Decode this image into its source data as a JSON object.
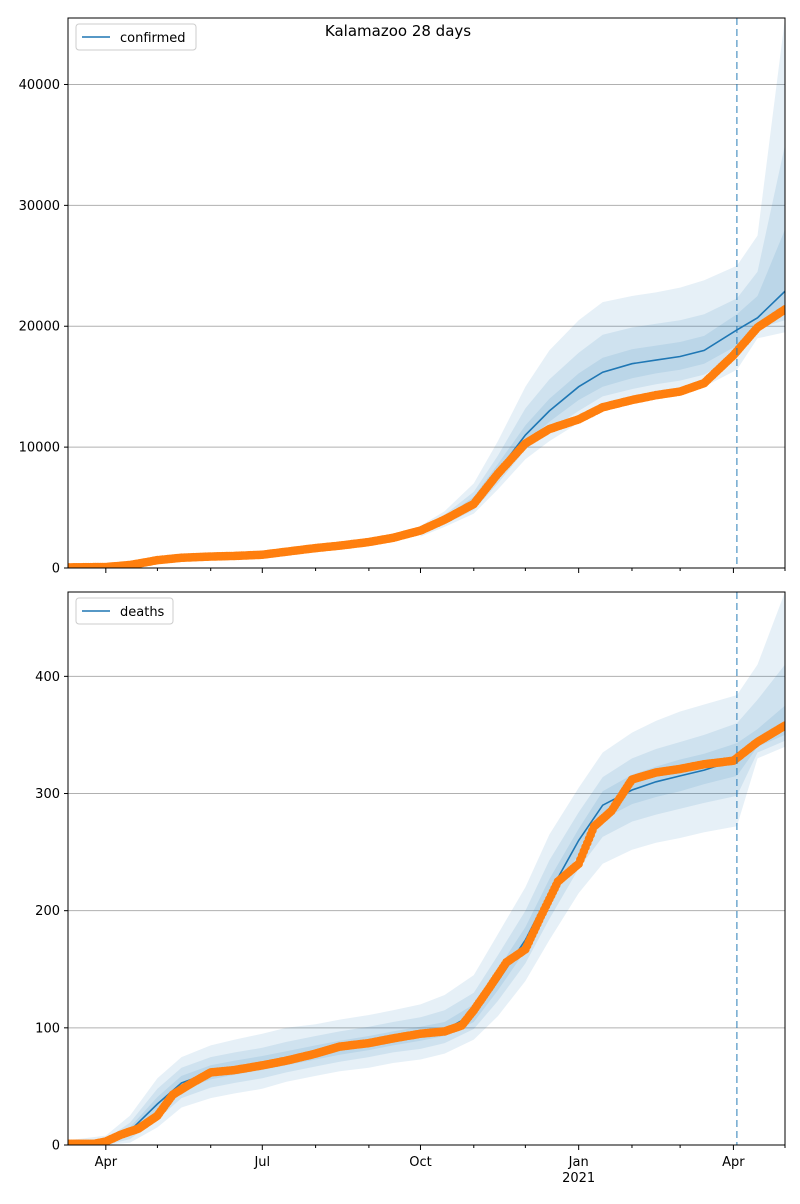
{
  "title": "Kalamazoo 28 days",
  "colors": {
    "model_line": "#1f77b4",
    "observed": "#ff7f0e",
    "band": "#1f77b4",
    "grid": "#b0b0b0",
    "vline": "#1f77b4"
  },
  "x_ticks": [
    {
      "label": "Apr",
      "sublabel": "",
      "date": "2020-04-01"
    },
    {
      "label": "Jul",
      "sublabel": "",
      "date": "2020-07-01"
    },
    {
      "label": "Oct",
      "sublabel": "",
      "date": "2020-10-01"
    },
    {
      "label": "Jan",
      "sublabel": "2021",
      "date": "2021-01-01"
    },
    {
      "label": "Apr",
      "sublabel": "",
      "date": "2021-04-01"
    }
  ],
  "x_minor_ticks": [
    "2020-05-01",
    "2020-06-01",
    "2020-08-01",
    "2020-09-01",
    "2020-11-01",
    "2020-12-01",
    "2021-02-01",
    "2021-03-01",
    "2021-05-01"
  ],
  "chart_data": [
    {
      "type": "line",
      "legend": "confirmed",
      "legend_position": "top-left",
      "grid": "horizontal",
      "xlim": [
        "2020-03-10",
        "2021-05-01"
      ],
      "ylim": [
        0,
        45500
      ],
      "yticks": [
        0,
        10000,
        20000,
        30000,
        40000
      ],
      "ytick_labels": [
        "0",
        "10000",
        "20000",
        "30000",
        "40000"
      ],
      "forecast_start": "2021-04-03",
      "model_series": {
        "name": "confirmed",
        "x": [
          "2020-03-10",
          "2020-04-01",
          "2020-05-01",
          "2020-06-01",
          "2020-07-01",
          "2020-08-01",
          "2020-09-01",
          "2020-10-01",
          "2020-10-15",
          "2020-11-01",
          "2020-11-15",
          "2020-12-01",
          "2020-12-15",
          "2021-01-01",
          "2021-01-15",
          "2021-02-01",
          "2021-02-15",
          "2021-03-01",
          "2021-03-15",
          "2021-04-03",
          "2021-04-15",
          "2021-05-01"
        ],
        "y": [
          0,
          50,
          600,
          900,
          1100,
          1500,
          1900,
          3000,
          4000,
          5500,
          8000,
          11000,
          13000,
          15000,
          16200,
          16900,
          17200,
          17500,
          18000,
          19700,
          20700,
          22900
        ]
      },
      "bands": [
        {
          "x": [
            "2020-10-01",
            "2020-10-15",
            "2020-11-01",
            "2020-11-15",
            "2020-12-01",
            "2020-12-15",
            "2021-01-01",
            "2021-01-15",
            "2021-02-01",
            "2021-02-15",
            "2021-03-01",
            "2021-03-15",
            "2021-04-03",
            "2021-04-15",
            "2021-05-01"
          ],
          "lower": [
            2600,
            3400,
            4500,
            6500,
            9000,
            10500,
            12000,
            13000,
            13600,
            14000,
            14400,
            15000,
            16400,
            19000,
            19500
          ],
          "upper": [
            3500,
            4700,
            7000,
            10500,
            15000,
            18000,
            20500,
            22000,
            22500,
            22800,
            23200,
            23800,
            25000,
            27500,
            45500
          ]
        },
        {
          "x": [
            "2020-10-01",
            "2020-10-15",
            "2020-11-01",
            "2020-11-15",
            "2020-12-01",
            "2020-12-15",
            "2021-01-01",
            "2021-01-15",
            "2021-02-01",
            "2021-02-15",
            "2021-03-01",
            "2021-03-15",
            "2021-04-03",
            "2021-04-15",
            "2021-05-01"
          ],
          "lower": [
            2750,
            3600,
            4800,
            7000,
            9800,
            11400,
            13000,
            14200,
            14800,
            15200,
            15500,
            16000,
            17500,
            19800,
            20500
          ],
          "upper": [
            3300,
            4400,
            6300,
            9300,
            13200,
            15600,
            17800,
            19300,
            19900,
            20200,
            20500,
            21000,
            22300,
            24500,
            35000
          ]
        },
        {
          "x": [
            "2020-10-01",
            "2020-10-15",
            "2020-11-01",
            "2020-11-15",
            "2020-12-01",
            "2020-12-15",
            "2021-01-01",
            "2021-01-15",
            "2021-02-01",
            "2021-02-15",
            "2021-03-01",
            "2021-03-15",
            "2021-04-03",
            "2021-04-15",
            "2021-05-01"
          ],
          "lower": [
            2850,
            3800,
            5100,
            7400,
            10300,
            12100,
            13900,
            15000,
            15700,
            16100,
            16400,
            16900,
            18400,
            20100,
            21200
          ],
          "upper": [
            3150,
            4200,
            5900,
            8600,
            11800,
            14000,
            16100,
            17400,
            18100,
            18400,
            18700,
            19200,
            21000,
            22500,
            28000
          ]
        }
      ],
      "observed_series": {
        "name": "observed",
        "x": [
          "2020-03-10",
          "2020-04-01",
          "2020-04-15",
          "2020-05-01",
          "2020-05-15",
          "2020-06-01",
          "2020-06-15",
          "2020-07-01",
          "2020-07-15",
          "2020-08-01",
          "2020-08-15",
          "2020-09-01",
          "2020-09-15",
          "2020-10-01",
          "2020-10-15",
          "2020-11-01",
          "2020-11-15",
          "2020-12-01",
          "2020-12-15",
          "2021-01-01",
          "2021-01-15",
          "2021-02-01",
          "2021-02-15",
          "2021-03-01",
          "2021-03-15",
          "2021-04-01",
          "2021-04-15",
          "2021-05-01"
        ],
        "y": [
          50,
          80,
          250,
          650,
          850,
          950,
          1000,
          1100,
          1350,
          1650,
          1850,
          2150,
          2500,
          3100,
          4000,
          5300,
          7800,
          10300,
          11500,
          12300,
          13300,
          13900,
          14300,
          14600,
          15300,
          17600,
          19900,
          21400
        ]
      }
    },
    {
      "type": "line",
      "legend": "deaths",
      "legend_position": "top-left",
      "grid": "horizontal",
      "xlim": [
        "2020-03-10",
        "2021-05-01"
      ],
      "ylim": [
        0,
        472
      ],
      "yticks": [
        0,
        100,
        200,
        300,
        400
      ],
      "ytick_labels": [
        "0",
        "100",
        "200",
        "300",
        "400"
      ],
      "forecast_start": "2021-04-03",
      "model_series": {
        "name": "deaths",
        "x": [
          "2020-03-10",
          "2020-04-01",
          "2020-04-15",
          "2020-05-01",
          "2020-05-15",
          "2020-06-01",
          "2020-06-15",
          "2020-07-01",
          "2020-07-15",
          "2020-08-01",
          "2020-08-15",
          "2020-09-01",
          "2020-09-15",
          "2020-10-01",
          "2020-10-15",
          "2020-11-01",
          "2020-11-15",
          "2020-12-01",
          "2020-12-15",
          "2021-01-01",
          "2021-01-15",
          "2021-02-01",
          "2021-02-15",
          "2021-03-01",
          "2021-03-15",
          "2021-04-03",
          "2021-04-15",
          "2021-05-01"
        ],
        "y": [
          1,
          2,
          12,
          35,
          53,
          62,
          66,
          70,
          74,
          79,
          83,
          87,
          91,
          95,
          98,
          112,
          140,
          175,
          215,
          260,
          290,
          303,
          310,
          315,
          320,
          329,
          343,
          357
        ]
      },
      "bands": [
        {
          "x": [
            "2020-03-10",
            "2020-04-01",
            "2020-04-15",
            "2020-05-01",
            "2020-05-15",
            "2020-06-01",
            "2020-06-15",
            "2020-07-01",
            "2020-07-15",
            "2020-08-01",
            "2020-08-15",
            "2020-09-01",
            "2020-09-15",
            "2020-10-01",
            "2020-10-15",
            "2020-11-01",
            "2020-11-15",
            "2020-12-01",
            "2020-12-15",
            "2021-01-01",
            "2021-01-15",
            "2021-02-01",
            "2021-02-15",
            "2021-03-01",
            "2021-03-15",
            "2021-04-03",
            "2021-04-15",
            "2021-05-01"
          ],
          "lower": [
            0,
            0,
            2,
            15,
            32,
            40,
            44,
            48,
            54,
            59,
            63,
            66,
            70,
            73,
            78,
            90,
            110,
            140,
            175,
            215,
            240,
            252,
            258,
            262,
            267,
            272,
            330,
            340
          ],
          "upper": [
            4,
            8,
            25,
            57,
            75,
            85,
            90,
            95,
            100,
            103,
            107,
            111,
            115,
            120,
            128,
            145,
            180,
            220,
            265,
            305,
            335,
            352,
            362,
            370,
            376,
            384,
            410,
            472
          ]
        },
        {
          "x": [
            "2020-03-10",
            "2020-04-01",
            "2020-04-15",
            "2020-05-01",
            "2020-05-15",
            "2020-06-01",
            "2020-06-15",
            "2020-07-01",
            "2020-07-15",
            "2020-08-01",
            "2020-08-15",
            "2020-09-01",
            "2020-09-15",
            "2020-10-01",
            "2020-10-15",
            "2020-11-01",
            "2020-11-15",
            "2020-12-01",
            "2020-12-15",
            "2021-01-01",
            "2021-01-15",
            "2021-02-01",
            "2021-02-15",
            "2021-03-01",
            "2021-03-15",
            "2021-04-03",
            "2021-04-15",
            "2021-05-01"
          ],
          "lower": [
            0,
            0,
            5,
            22,
            40,
            49,
            53,
            57,
            62,
            67,
            71,
            75,
            79,
            82,
            87,
            99,
            123,
            155,
            193,
            236,
            263,
            276,
            282,
            287,
            292,
            298,
            335,
            345
          ],
          "upper": [
            3,
            5,
            19,
            48,
            66,
            75,
            79,
            83,
            88,
            93,
            97,
            101,
            105,
            109,
            115,
            130,
            162,
            200,
            243,
            284,
            314,
            330,
            338,
            344,
            350,
            360,
            380,
            410
          ]
        },
        {
          "x": [
            "2020-03-10",
            "2020-04-01",
            "2020-04-15",
            "2020-05-01",
            "2020-05-15",
            "2020-06-01",
            "2020-06-15",
            "2020-07-01",
            "2020-07-15",
            "2020-08-01",
            "2020-08-15",
            "2020-09-01",
            "2020-09-15",
            "2020-10-01",
            "2020-10-15",
            "2020-11-01",
            "2020-11-15",
            "2020-12-01",
            "2020-12-15",
            "2021-01-01",
            "2021-01-15",
            "2021-02-01",
            "2021-02-15",
            "2021-03-01",
            "2021-03-15",
            "2021-04-03",
            "2021-04-15",
            "2021-05-01"
          ],
          "lower": [
            0,
            1,
            9,
            29,
            47,
            56,
            60,
            64,
            68,
            73,
            77,
            81,
            85,
            89,
            93,
            105,
            132,
            166,
            205,
            249,
            278,
            291,
            297,
            302,
            308,
            315,
            340,
            350
          ],
          "upper": [
            2,
            3,
            15,
            41,
            59,
            68,
            72,
            76,
            80,
            85,
            89,
            93,
            97,
            101,
            105,
            120,
            150,
            186,
            227,
            270,
            302,
            316,
            323,
            329,
            334,
            343,
            355,
            375
          ]
        }
      ],
      "observed_series": {
        "name": "observed",
        "x": [
          "2020-03-10",
          "2020-03-25",
          "2020-04-01",
          "2020-04-10",
          "2020-04-20",
          "2020-05-01",
          "2020-05-10",
          "2020-05-20",
          "2020-06-01",
          "2020-06-15",
          "2020-07-01",
          "2020-07-15",
          "2020-08-01",
          "2020-08-15",
          "2020-09-01",
          "2020-09-15",
          "2020-10-01",
          "2020-10-15",
          "2020-10-25",
          "2020-11-01",
          "2020-11-10",
          "2020-11-20",
          "2020-12-01",
          "2020-12-10",
          "2020-12-20",
          "2021-01-01",
          "2021-01-10",
          "2021-01-20",
          "2021-02-01",
          "2021-02-15",
          "2021-03-01",
          "2021-03-15",
          "2021-04-01",
          "2021-04-15",
          "2021-05-01"
        ],
        "y": [
          1,
          1,
          3,
          9,
          14,
          25,
          43,
          52,
          62,
          64,
          68,
          72,
          78,
          84,
          87,
          91,
          95,
          97,
          102,
          115,
          134,
          156,
          167,
          195,
          225,
          240,
          272,
          285,
          312,
          318,
          321,
          325,
          328,
          344,
          358
        ]
      }
    }
  ]
}
